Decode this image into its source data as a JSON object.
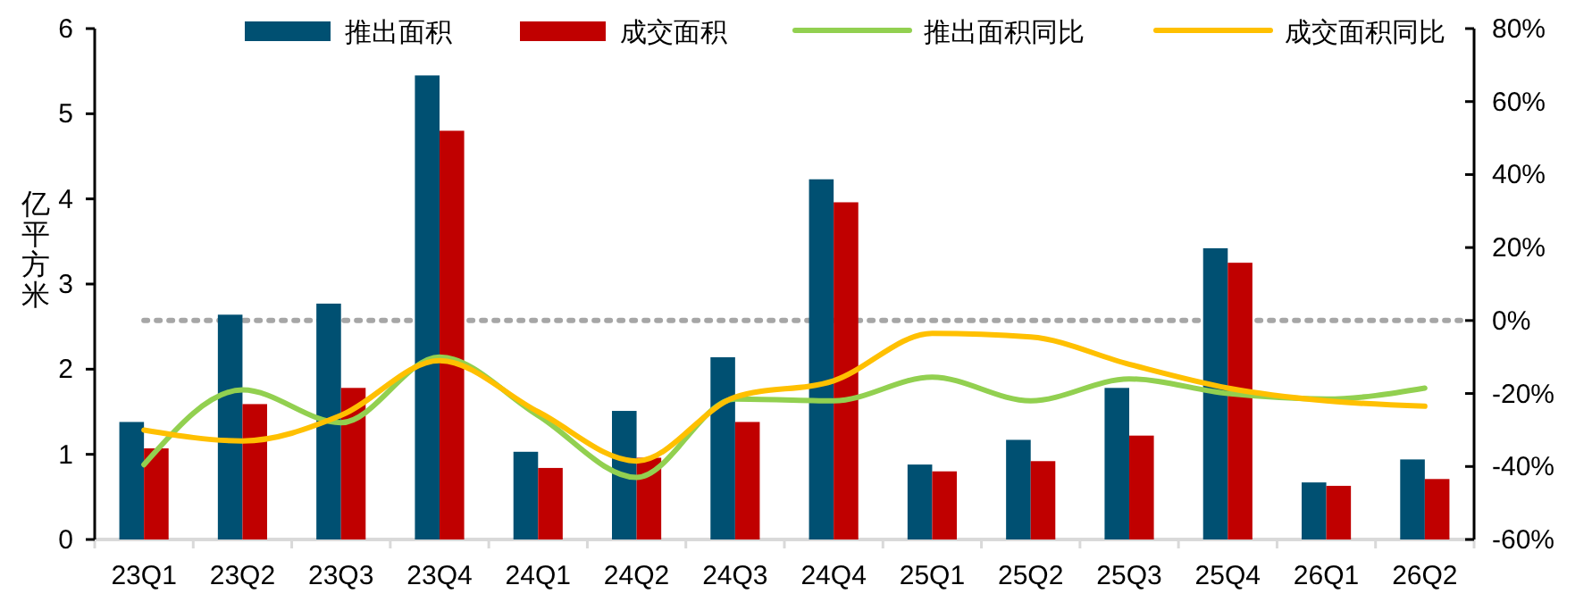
{
  "chart_data": {
    "type": "bar",
    "ylabel": "亿平方米",
    "categories": [
      "23Q1",
      "23Q2",
      "23Q3",
      "23Q4",
      "24Q1",
      "24Q2",
      "24Q3",
      "24Q4",
      "25Q1",
      "25Q2",
      "25Q3",
      "25Q4",
      "26Q1",
      "26Q2"
    ],
    "series": [
      {
        "name": "推出面积",
        "color": "#005072",
        "values": [
          1.38,
          2.64,
          2.77,
          5.45,
          1.03,
          1.51,
          2.14,
          4.23,
          0.88,
          1.17,
          1.78,
          3.42,
          0.67,
          0.94
        ]
      },
      {
        "name": "成交面积",
        "color": "#c00000",
        "values": [
          1.07,
          1.59,
          1.78,
          4.8,
          0.84,
          0.96,
          1.38,
          3.96,
          0.8,
          0.92,
          1.22,
          3.25,
          0.63,
          0.71
        ]
      },
      {
        "name": "推出面积同比",
        "type": "line",
        "axis": "y2",
        "color": "#92d050",
        "values": [
          -39.5,
          -19,
          -28,
          -10,
          -26,
          -43,
          -21.5,
          -22,
          -15.5,
          -22,
          -16,
          -20,
          -21.5,
          -18.5
        ]
      },
      {
        "name": "成交面积同比",
        "type": "line",
        "axis": "y2",
        "color": "#ffc000",
        "values": [
          -30,
          -33,
          -26,
          -11,
          -25,
          -38.5,
          -21,
          -16.5,
          -3.5,
          -4.5,
          -12,
          -18.5,
          -22,
          -23.5
        ]
      }
    ],
    "ylim": [
      0,
      6
    ],
    "yticks": [
      0,
      1,
      2,
      3,
      4,
      5,
      6
    ],
    "y2lim": [
      -60,
      80
    ],
    "y2ticks": [
      {
        "value": -60,
        "label": "-60%"
      },
      {
        "value": -40,
        "label": "-40%"
      },
      {
        "value": -20,
        "label": "-20%"
      },
      {
        "value": 0,
        "label": "0%"
      },
      {
        "value": 20,
        "label": "20%"
      },
      {
        "value": 40,
        "label": "40%"
      },
      {
        "value": 60,
        "label": "60%"
      },
      {
        "value": 80,
        "label": "80%"
      }
    ],
    "ref_lines": [
      {
        "axis": "y2",
        "value": 0,
        "color": "#a6a6a6",
        "line_style": "dotted"
      }
    ],
    "legend": "top",
    "grid": false
  }
}
